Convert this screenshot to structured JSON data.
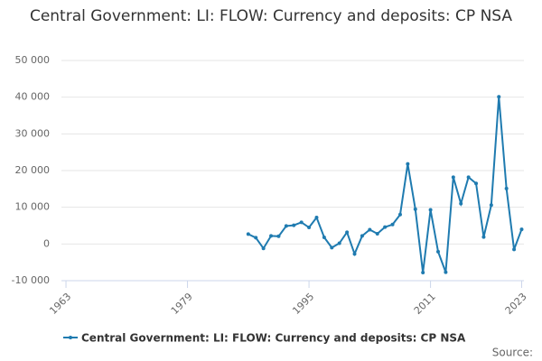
{
  "chart_data": {
    "type": "line",
    "title": "Central Government: LI: FLOW: Currency and deposits: CP NSA",
    "x": [
      1987,
      1988,
      1989,
      1990,
      1991,
      1992,
      1993,
      1994,
      1995,
      1996,
      1997,
      1998,
      1999,
      2000,
      2001,
      2002,
      2003,
      2004,
      2005,
      2006,
      2007,
      2008,
      2009,
      2010,
      2011,
      2012,
      2013,
      2014,
      2015,
      2016,
      2017,
      2018,
      2019,
      2020,
      2021,
      2022,
      2023
    ],
    "series": [
      {
        "name": "Central Government: LI: FLOW: Currency and deposits: CP NSA",
        "color": "#1f7bb0",
        "values": [
          2700,
          1700,
          -1200,
          2200,
          2100,
          4900,
          5100,
          5900,
          4500,
          7200,
          1800,
          -1000,
          200,
          3200,
          -2700,
          2200,
          3900,
          2800,
          4600,
          5300,
          8000,
          21800,
          9500,
          -7800,
          9300,
          -2100,
          -7700,
          18200,
          11000,
          18200,
          16500,
          1900,
          10600,
          40100,
          15100,
          -1500,
          4000
        ]
      }
    ],
    "xlim": [
      1962.4,
      2023.3
    ],
    "xticks": [
      1963,
      1979,
      1995,
      2011,
      2023
    ],
    "ylim": [
      -10000,
      50000
    ],
    "yticks": [
      {
        "value": -10000,
        "label": "-10 000"
      },
      0,
      {
        "value": 10000,
        "label": "10 000"
      },
      {
        "value": 20000,
        "label": "20 000"
      },
      {
        "value": 30000,
        "label": "30 000"
      },
      {
        "value": 40000,
        "label": "40 000"
      },
      {
        "value": 50000,
        "label": "50 000"
      }
    ],
    "grid": true,
    "source": "Source:"
  }
}
